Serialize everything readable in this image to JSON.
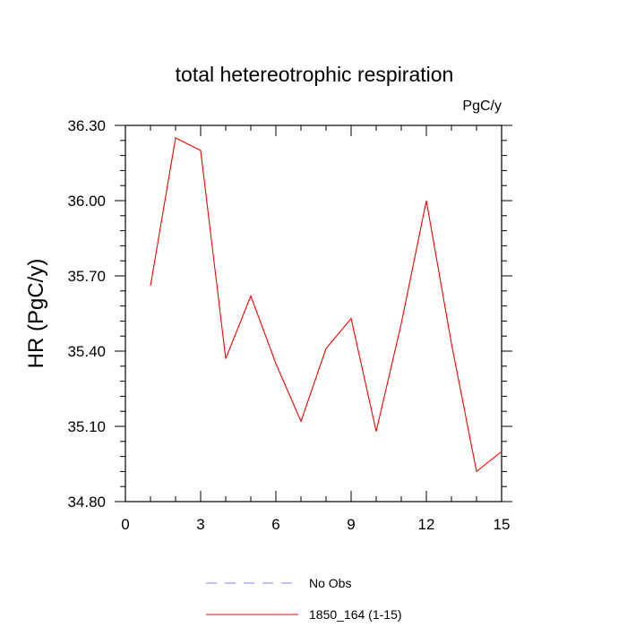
{
  "chart_data": {
    "type": "line",
    "title": "total hetereotrophic respiration",
    "units_label": "PgC/y",
    "ylabel": "HR  (PgC/y)",
    "xlabel": "",
    "xlim": [
      0,
      15
    ],
    "ylim": [
      34.8,
      36.3
    ],
    "x_ticks": [
      0,
      3,
      6,
      9,
      12,
      15
    ],
    "x_tick_labels": [
      "0",
      "3",
      "6",
      "9",
      "12",
      "15"
    ],
    "y_ticks": [
      34.8,
      35.1,
      35.4,
      35.7,
      36.0,
      36.3
    ],
    "y_tick_labels": [
      "34.80",
      "35.10",
      "35.40",
      "35.70",
      "36.00",
      "36.30"
    ],
    "grid": false,
    "legend_position": "bottom",
    "series": [
      {
        "name": "1850_164 (1-15)",
        "color": "#ff0000",
        "line_style": "solid",
        "x": [
          1,
          2,
          3,
          4,
          5,
          6,
          7,
          8,
          9,
          10,
          11,
          12,
          13,
          14,
          15
        ],
        "y": [
          35.66,
          36.25,
          36.2,
          35.37,
          35.62,
          35.35,
          35.12,
          35.41,
          35.53,
          35.08,
          35.51,
          36.0,
          35.43,
          34.92,
          35.0
        ]
      }
    ],
    "legend": [
      {
        "label": "No Obs",
        "color": "#8080ff",
        "line_style": "dashed"
      },
      {
        "label": "1850_164 (1-15)",
        "color": "#ff0000",
        "line_style": "solid"
      }
    ]
  }
}
